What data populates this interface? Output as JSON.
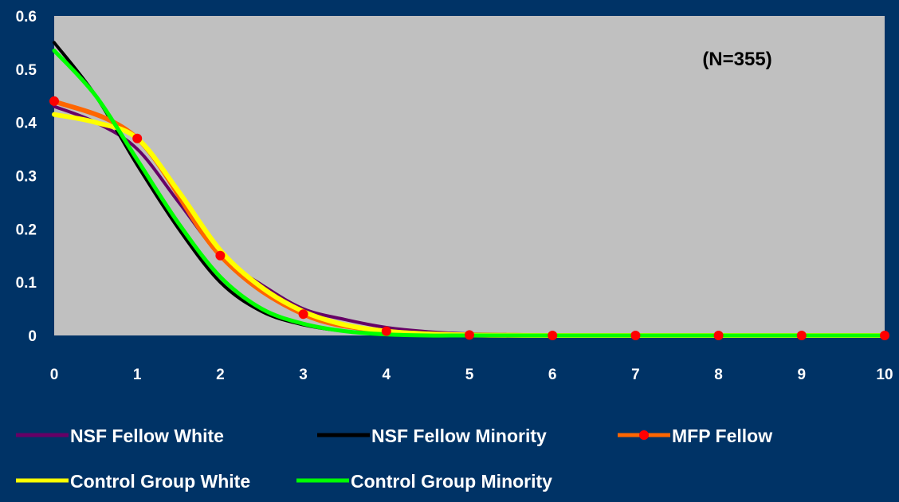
{
  "chart_data": {
    "type": "line",
    "annotation": "(N=355)",
    "title": "",
    "xlabel": "",
    "ylabel": "",
    "xlim": [
      0,
      10
    ],
    "ylim": [
      0,
      0.6
    ],
    "x_ticks": [
      "0",
      "1",
      "2",
      "3",
      "4",
      "5",
      "6",
      "7",
      "8",
      "9",
      "10"
    ],
    "y_ticks": [
      "0",
      "0.1",
      "0.2",
      "0.3",
      "0.4",
      "0.5",
      "0.6"
    ],
    "grid": false,
    "legend_position": "bottom",
    "plot_background": "#C0C0C0",
    "page_background": "#003366",
    "series": [
      {
        "name": "NSF Fellow White",
        "color": "#660066",
        "marker": "none",
        "x": [
          0,
          0.5,
          1,
          1.5,
          2,
          2.5,
          3,
          3.5,
          4,
          4.5,
          5,
          6,
          7,
          8,
          9,
          10
        ],
        "values": [
          0.43,
          0.4,
          0.35,
          0.25,
          0.15,
          0.095,
          0.05,
          0.03,
          0.015,
          0.007,
          0.003,
          0.001,
          0,
          0,
          0,
          0
        ]
      },
      {
        "name": "NSF Fellow Minority",
        "color": "#000000",
        "marker": "none",
        "x": [
          0,
          0.5,
          1,
          1.5,
          2,
          2.5,
          3,
          3.5,
          4,
          4.5,
          5,
          6,
          7,
          8,
          9,
          10
        ],
        "values": [
          0.55,
          0.45,
          0.32,
          0.2,
          0.1,
          0.045,
          0.02,
          0.008,
          0.003,
          0.001,
          0,
          0,
          0,
          0,
          0,
          0
        ]
      },
      {
        "name": "MFP Fellow",
        "color": "#FF6600",
        "marker": "circle",
        "marker_color": "#FF0000",
        "x": [
          0,
          1,
          2,
          3,
          4,
          5,
          6,
          7,
          8,
          9,
          10
        ],
        "values": [
          0.44,
          0.37,
          0.15,
          0.04,
          0.008,
          0.001,
          0,
          0,
          0,
          0,
          0
        ]
      },
      {
        "name": "Control Group White",
        "color": "#FFFF00",
        "marker": "none",
        "x": [
          0,
          0.5,
          1,
          1.5,
          2,
          2.5,
          3,
          3.5,
          4,
          4.5,
          5,
          6,
          7,
          8,
          9,
          10
        ],
        "values": [
          0.415,
          0.4,
          0.37,
          0.27,
          0.16,
          0.09,
          0.045,
          0.02,
          0.008,
          0.003,
          0.001,
          0,
          0,
          0,
          0,
          0
        ]
      },
      {
        "name": "Control Group Minority",
        "color": "#00FF00",
        "marker": "none",
        "x": [
          0,
          0.5,
          1,
          1.5,
          2,
          2.5,
          3,
          3.5,
          4,
          4.5,
          5,
          6,
          7,
          8,
          9,
          10
        ],
        "values": [
          0.535,
          0.45,
          0.33,
          0.21,
          0.11,
          0.05,
          0.022,
          0.008,
          0.002,
          0,
          0,
          0,
          0,
          0,
          0,
          0
        ]
      }
    ]
  }
}
